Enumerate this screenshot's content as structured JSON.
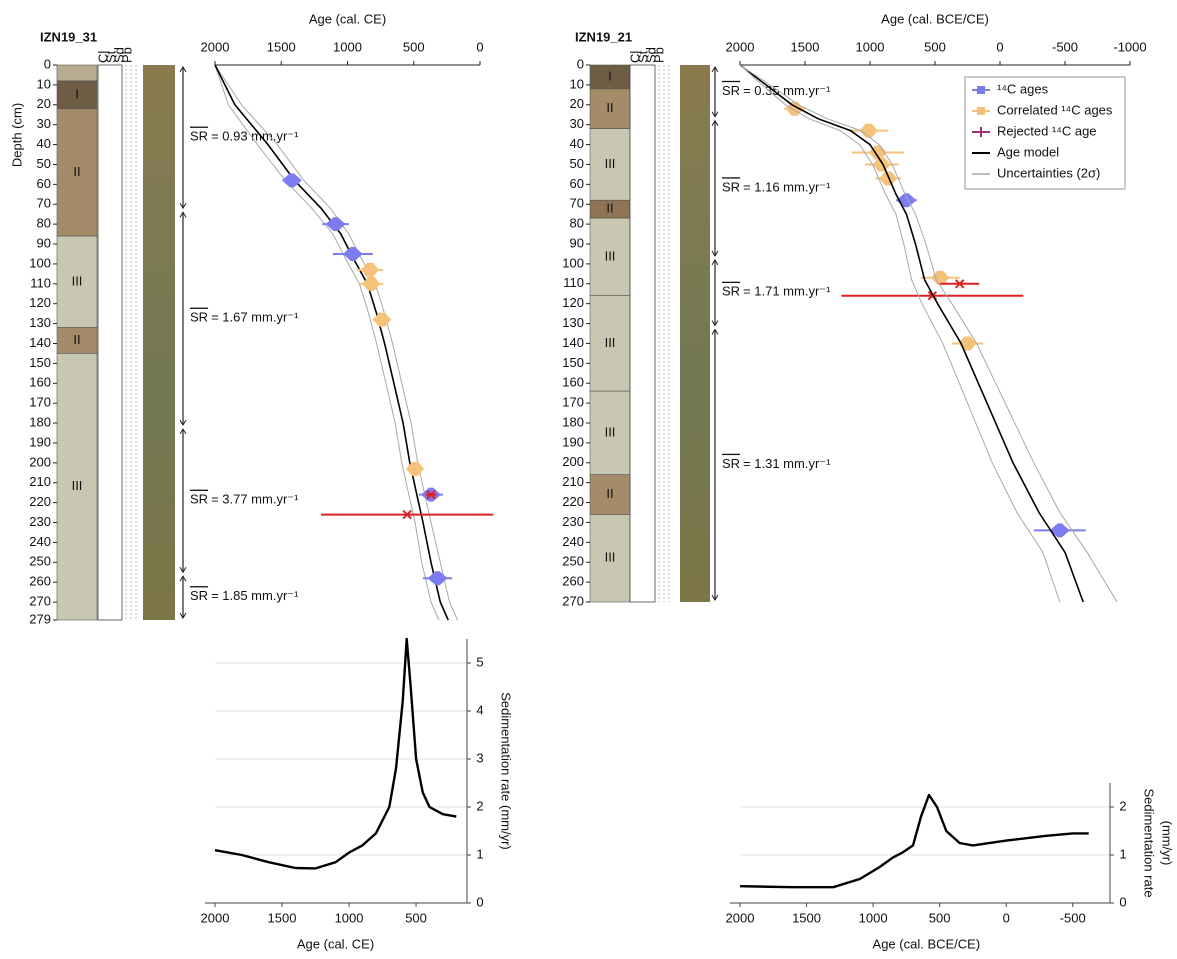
{
  "chart_data": [
    {
      "type": "age-depth",
      "core": "IZN19_31",
      "x_label": "Age (cal. CE)",
      "y_label": "Depth (cm)",
      "xlim": [
        2000,
        0
      ],
      "xticks": [
        2000,
        1500,
        1000,
        500,
        0
      ],
      "ylim": [
        0,
        279
      ],
      "yticks": [
        0,
        10,
        20,
        30,
        40,
        50,
        60,
        70,
        80,
        90,
        100,
        110,
        120,
        130,
        140,
        150,
        160,
        170,
        180,
        190,
        200,
        210,
        220,
        230,
        240,
        250,
        260,
        270,
        279
      ],
      "log_columns": [
        "Cl",
        "St",
        "Sd",
        "Pb"
      ],
      "units": [
        {
          "top": 0,
          "bottom": 8,
          "color": "#b9ab8f"
        },
        {
          "label": "I",
          "top": 8,
          "bottom": 22,
          "color": "#6e5c45"
        },
        {
          "label": "II",
          "top": 22,
          "bottom": 86,
          "color": "#a58c69"
        },
        {
          "label": "III",
          "top": 86,
          "bottom": 132,
          "color": "#c8c7b2"
        },
        {
          "label": "II",
          "top": 132,
          "bottom": 145,
          "color": "#a58c69"
        },
        {
          "label": "III",
          "top": 145,
          "bottom": 279,
          "color": "#c8c7b2"
        }
      ],
      "sr_symbol": "SR",
      "sr_intervals": [
        {
          "top": 0,
          "bottom": 73,
          "label": "= 0.93 mm.yr⁻¹"
        },
        {
          "top": 73,
          "bottom": 182,
          "label": "= 1.67 mm.yr⁻¹"
        },
        {
          "top": 182,
          "bottom": 256,
          "label": "= 3.77 mm.yr⁻¹"
        },
        {
          "top": 256,
          "bottom": 279,
          "label": "= 1.85 mm.yr⁻¹"
        }
      ],
      "series": [
        {
          "marker": "line",
          "color": "#a8a8a8",
          "depth": [
            0,
            20,
            40,
            58,
            72,
            85,
            98,
            110,
            125,
            140,
            160,
            180,
            200,
            215,
            230,
            250,
            270,
            279
          ],
          "age_old": [
            2000,
            1900,
            1680,
            1470,
            1270,
            1110,
            1010,
            910,
            840,
            780,
            710,
            640,
            590,
            540,
            490,
            440,
            370,
            310
          ],
          "age_young": [
            2000,
            1800,
            1530,
            1330,
            1130,
            990,
            890,
            790,
            720,
            660,
            590,
            520,
            470,
            420,
            370,
            300,
            230,
            170
          ]
        },
        {
          "marker": "line",
          "color": "#000000",
          "depth": [
            0,
            20,
            40,
            58,
            72,
            85,
            98,
            110,
            125,
            140,
            160,
            180,
            200,
            215,
            230,
            250,
            270,
            279
          ],
          "age": [
            2000,
            1850,
            1600,
            1400,
            1200,
            1050,
            950,
            850,
            780,
            720,
            650,
            580,
            530,
            480,
            430,
            370,
            300,
            240
          ]
        },
        {
          "marker": "square",
          "color": "#7c7cf0",
          "age": [
            1420,
            1090,
            960,
            370,
            320
          ],
          "depth": [
            58,
            80,
            95,
            216,
            258
          ],
          "age_err": [
            60,
            100,
            150,
            90,
            110
          ]
        },
        {
          "marker": "diamond",
          "color": "#f5c27a",
          "age": [
            830,
            820,
            740,
            490
          ],
          "depth": [
            103,
            110,
            128,
            203
          ],
          "age_err": [
            100,
            90,
            70,
            60
          ]
        },
        {
          "marker": "x",
          "color": "#e02020",
          "age": [
            370,
            550
          ],
          "depth": [
            216,
            226
          ],
          "age_err": [
            40,
            650
          ]
        }
      ]
    },
    {
      "type": "age-depth",
      "core": "IZN19_21",
      "x_label": "Age (cal. BCE/CE)",
      "xlim": [
        2000,
        -1000
      ],
      "xticks": [
        2000,
        1500,
        1000,
        500,
        0,
        -500,
        -1000
      ],
      "ylim": [
        0,
        270
      ],
      "yticks": [
        0,
        10,
        20,
        30,
        40,
        50,
        60,
        70,
        80,
        90,
        100,
        110,
        120,
        130,
        140,
        150,
        160,
        170,
        180,
        190,
        200,
        210,
        220,
        230,
        240,
        250,
        260,
        270
      ],
      "log_columns": [
        "Cl",
        "St",
        "Sd",
        "Pb"
      ],
      "units": [
        {
          "label": "I",
          "top": 0,
          "bottom": 12,
          "color": "#6e5c45"
        },
        {
          "label": "II",
          "top": 12,
          "bottom": 32,
          "color": "#a58c69"
        },
        {
          "label": "III",
          "top": 32,
          "bottom": 68,
          "color": "#c8c7b2"
        },
        {
          "label": "II",
          "top": 68,
          "bottom": 77,
          "color": "#8e7455"
        },
        {
          "label": "III",
          "top": 77,
          "bottom": 116,
          "color": "#c8c7b2"
        },
        {
          "label": "III",
          "top": 116,
          "bottom": 164,
          "color": "#c8c7b2"
        },
        {
          "label": "III",
          "top": 164,
          "bottom": 206,
          "color": "#c8c7b2"
        },
        {
          "label": "II",
          "top": 206,
          "bottom": 226,
          "color": "#a58c69"
        },
        {
          "label": "III",
          "top": 226,
          "bottom": 270,
          "color": "#c8c7b2"
        }
      ],
      "sr_symbol": "SR",
      "sr_intervals": [
        {
          "top": 0,
          "bottom": 27,
          "label": "= 0.35 mm.yr⁻¹"
        },
        {
          "top": 27,
          "bottom": 97,
          "label": "= 1.16 mm.yr⁻¹"
        },
        {
          "top": 97,
          "bottom": 132,
          "label": "= 1.71 mm.yr⁻¹"
        },
        {
          "top": 132,
          "bottom": 270,
          "label": "= 1.31 mm.yr⁻¹"
        }
      ],
      "legend": "upper right",
      "series": [
        {
          "name": "¹⁴C ages",
          "marker": "square",
          "color": "#7c7cf0",
          "age": [
            720,
            -460
          ],
          "depth": [
            68,
            234
          ],
          "age_err": [
            80,
            200
          ]
        },
        {
          "name": "Correlated ¹⁴C ages",
          "marker": "diamond",
          "color": "#f5c27a",
          "age": [
            1580,
            1010,
            940,
            910,
            860,
            460,
            250
          ],
          "depth": [
            22,
            33,
            44,
            50,
            57,
            107,
            140
          ],
          "age_err": [
            80,
            150,
            200,
            130,
            100,
            150,
            120
          ]
        },
        {
          "name": "Rejected ¹⁴C age",
          "marker": "x",
          "color": "#e02020",
          "age": [
            310,
            520
          ],
          "depth": [
            110,
            116
          ],
          "age_err": [
            150,
            700
          ]
        },
        {
          "name": "Age model",
          "marker": "line",
          "color": "#000000",
          "depth": [
            0,
            10,
            20,
            27,
            33,
            40,
            50,
            65,
            75,
            90,
            108,
            120,
            140,
            170,
            200,
            225,
            245,
            270
          ],
          "age": [
            2000,
            1800,
            1600,
            1400,
            1150,
            1000,
            900,
            800,
            720,
            650,
            580,
            480,
            300,
            100,
            -100,
            -300,
            -500,
            -640
          ]
        },
        {
          "name": "Uncertainties (2σ)",
          "marker": "line",
          "color": "#a8a8a8",
          "depth": [
            0,
            10,
            20,
            27,
            33,
            40,
            50,
            65,
            75,
            90,
            108,
            120,
            140,
            170,
            200,
            225,
            245,
            270
          ],
          "age_old": [
            2000,
            1830,
            1650,
            1470,
            1230,
            1080,
            980,
            880,
            800,
            740,
            680,
            600,
            440,
            250,
            60,
            -130,
            -330,
            -460
          ],
          "age_young": [
            2000,
            1770,
            1550,
            1330,
            1070,
            930,
            830,
            730,
            650,
            570,
            490,
            370,
            180,
            -40,
            -260,
            -460,
            -670,
            -900
          ]
        }
      ]
    },
    {
      "type": "line",
      "x_label": "Age (cal. CE)",
      "y_label": "Sedimentation rate (mm/yr)",
      "color": "#000000",
      "grid": true,
      "x": [
        2000,
        1800,
        1600,
        1400,
        1250,
        1100,
        1000,
        900,
        800,
        700,
        650,
        600,
        570,
        540,
        500,
        450,
        400,
        300,
        200
      ],
      "values": [
        1.1,
        1.0,
        0.85,
        0.73,
        0.72,
        0.85,
        1.05,
        1.2,
        1.45,
        2.0,
        2.8,
        4.2,
        5.5,
        4.5,
        3.0,
        2.3,
        2.0,
        1.85,
        1.8
      ],
      "xlim": [
        2000,
        120
      ],
      "xticks": [
        2000,
        1500,
        1000,
        500
      ],
      "ylim": [
        0,
        5.5
      ],
      "yticks": [
        0,
        1,
        2,
        3,
        4,
        5
      ]
    },
    {
      "type": "line",
      "x_label": "Age (cal. BCE/CE)",
      "y_label": [
        "Sedimentation rate",
        "(mm/yr)"
      ],
      "color": "#000000",
      "grid": true,
      "x": [
        2000,
        1600,
        1300,
        1100,
        950,
        850,
        780,
        700,
        640,
        580,
        520,
        450,
        350,
        250,
        0,
        -300,
        -500,
        -620
      ],
      "values": [
        0.35,
        0.33,
        0.33,
        0.5,
        0.75,
        0.95,
        1.05,
        1.2,
        1.8,
        2.25,
        2.0,
        1.5,
        1.25,
        1.2,
        1.3,
        1.4,
        1.45,
        1.45
      ],
      "xlim": [
        2000,
        -780
      ],
      "xticks": [
        2000,
        1500,
        1000,
        500,
        0,
        -500
      ],
      "ylim": [
        0,
        2.5
      ],
      "yticks": [
        0,
        1,
        2
      ]
    }
  ]
}
